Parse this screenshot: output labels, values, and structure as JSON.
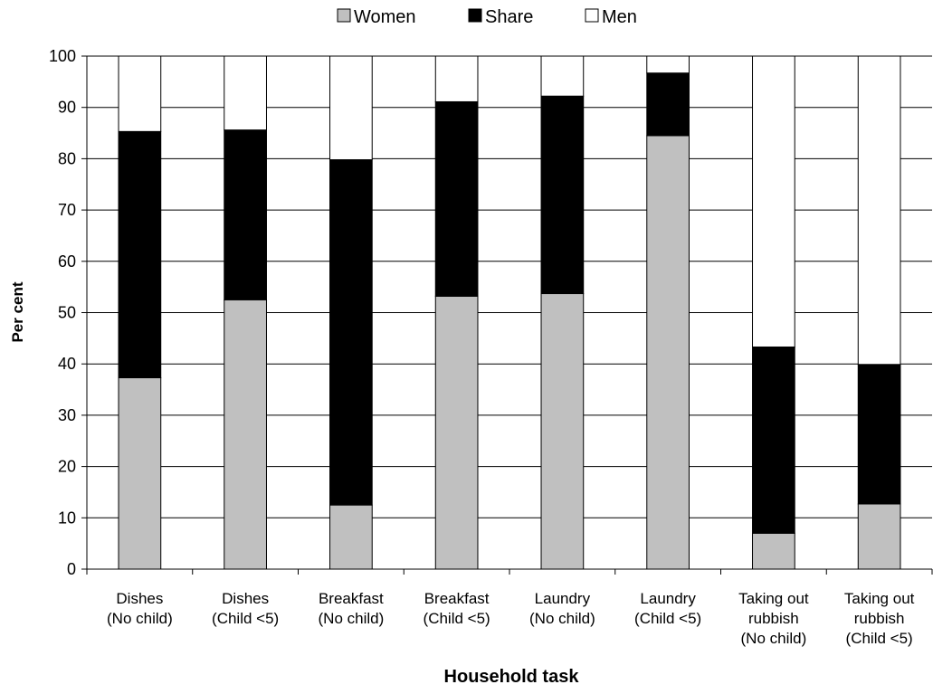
{
  "chart_data": {
    "type": "bar",
    "stacked": true,
    "title": "",
    "xlabel": "Household task",
    "ylabel": "Per cent",
    "ylim": [
      0,
      100
    ],
    "yticks": [
      0,
      10,
      20,
      30,
      40,
      50,
      60,
      70,
      80,
      90,
      100
    ],
    "grid": "horizontal",
    "legend_position": "top",
    "categories": [
      [
        "Dishes",
        "(No child)"
      ],
      [
        "Dishes",
        "(Child <5)"
      ],
      [
        "Breakfast",
        "(No child)"
      ],
      [
        "Breakfast",
        "(Child <5)"
      ],
      [
        "Laundry",
        "(No child)"
      ],
      [
        "Laundry",
        "(Child <5)"
      ],
      [
        "Taking out",
        "rubbish",
        "(No child)"
      ],
      [
        "Taking out",
        "rubbish",
        "(Child <5)"
      ]
    ],
    "series": [
      {
        "name": "Women",
        "color": "#c0c0c0",
        "values": [
          37.3,
          52.5,
          12.5,
          53.2,
          53.7,
          84.5,
          7.0,
          12.7
        ]
      },
      {
        "name": "Share",
        "color": "#000000",
        "values": [
          48.0,
          33.1,
          67.3,
          37.9,
          38.5,
          12.2,
          36.3,
          27.2
        ]
      },
      {
        "name": "Men",
        "color": "#ffffff",
        "values": [
          14.7,
          14.4,
          20.2,
          8.9,
          7.8,
          3.3,
          56.7,
          60.1
        ]
      }
    ]
  }
}
